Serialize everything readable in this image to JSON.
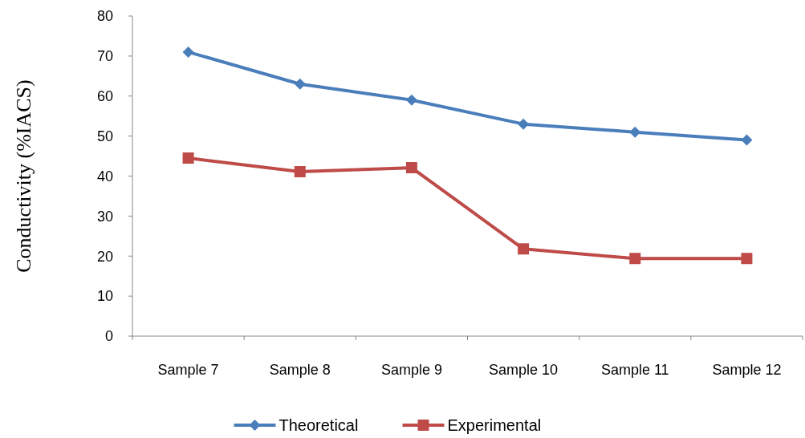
{
  "chart_data": {
    "type": "line",
    "ylabel": "Conductivity (%IACS)",
    "categories": [
      "Sample 7",
      "Sample 8",
      "Sample 9",
      "Sample 10",
      "Sample 11",
      "Sample 12"
    ],
    "series": [
      {
        "name": "Theoretical",
        "color": "#4a7ebb",
        "marker": "diamond",
        "values": [
          71,
          63,
          59,
          53,
          51,
          49
        ]
      },
      {
        "name": "Experimental",
        "color": "#be4b48",
        "marker": "square",
        "values": [
          44.5,
          41.1,
          42.1,
          21.8,
          19.4,
          19.4
        ]
      }
    ],
    "ylim": [
      0,
      80
    ],
    "yticks": [
      0,
      10,
      20,
      30,
      40,
      50,
      60,
      70,
      80
    ],
    "grid": false,
    "legend": "bottom"
  }
}
